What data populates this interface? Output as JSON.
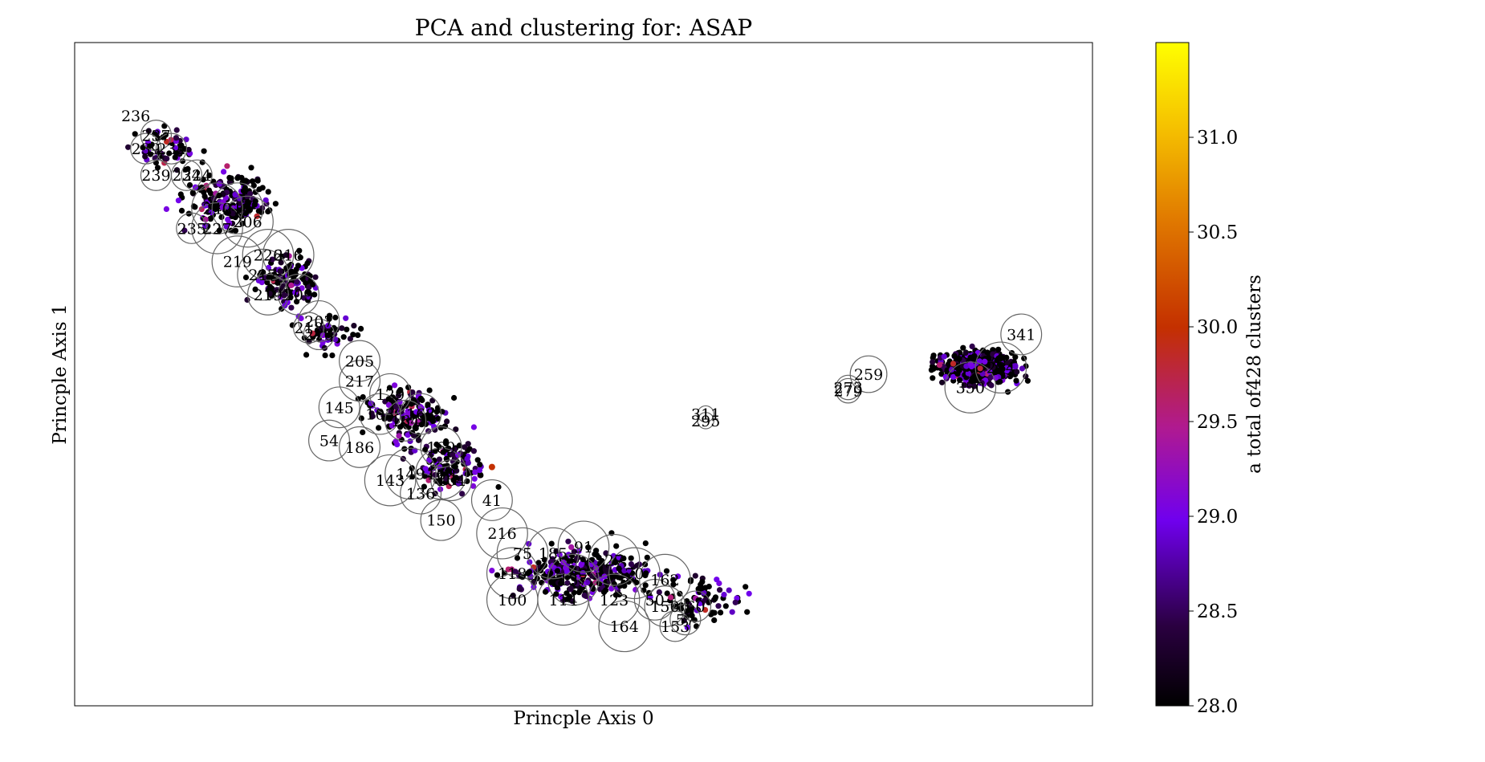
{
  "chart_data": {
    "type": "scatter",
    "title": "PCA and clustering for: ASAP",
    "xlabel": "Princple Axis 0",
    "ylabel": "Princple Axis 1",
    "xlim": [
      0,
      100
    ],
    "ylim": [
      0,
      100
    ],
    "grid": false,
    "colorbar": {
      "label": "a total of428 clusters",
      "colormap": "gnuplot",
      "range": [
        28.0,
        31.5
      ],
      "ticks": [
        28.0,
        28.5,
        29.0,
        29.5,
        30.0,
        30.5,
        31.0
      ],
      "tick_labels": [
        "28.0",
        "28.5",
        "29.0",
        "29.5",
        "30.0",
        "30.5",
        "31.0"
      ]
    },
    "point_groups": [
      {
        "cx": 9,
        "cy": 84,
        "sx": 2.5,
        "sy": 2.5,
        "n": 60
      },
      {
        "cx": 15,
        "cy": 76,
        "sx": 3.5,
        "sy": 3.5,
        "n": 200
      },
      {
        "cx": 21,
        "cy": 64,
        "sx": 3,
        "sy": 3,
        "n": 120
      },
      {
        "cx": 25,
        "cy": 56,
        "sx": 2.5,
        "sy": 2.5,
        "n": 50
      },
      {
        "cx": 33,
        "cy": 44,
        "sx": 3,
        "sy": 3.5,
        "n": 160
      },
      {
        "cx": 37,
        "cy": 36,
        "sx": 3,
        "sy": 3,
        "n": 140
      },
      {
        "cx": 50,
        "cy": 20,
        "sx": 5.5,
        "sy": 3,
        "n": 320
      },
      {
        "cx": 62,
        "cy": 16,
        "sx": 3.5,
        "sy": 3,
        "n": 80
      },
      {
        "cx": 89,
        "cy": 51,
        "sx": 3,
        "sy": 2,
        "n": 600
      }
    ],
    "highlight_point": {
      "x": 41,
      "y": 36,
      "value": 30.0
    },
    "clusters": [
      {
        "label": "236",
        "x": 6,
        "y": 89,
        "r": 0
      },
      {
        "label": "237",
        "x": 8,
        "y": 86,
        "r": 1.5
      },
      {
        "label": "239",
        "x": 7,
        "y": 84,
        "r": 1.5
      },
      {
        "label": "232",
        "x": 9.5,
        "y": 84,
        "r": 1.5
      },
      {
        "label": "239",
        "x": 8,
        "y": 80,
        "r": 1.5
      },
      {
        "label": "234",
        "x": 11,
        "y": 80,
        "r": 1.5
      },
      {
        "label": "224",
        "x": 12,
        "y": 80,
        "r": 1.5
      },
      {
        "label": "240",
        "x": 14,
        "y": 75,
        "r": 2.5
      },
      {
        "label": "214",
        "x": 16,
        "y": 75,
        "r": 2.5
      },
      {
        "label": "206",
        "x": 17,
        "y": 73,
        "r": 2.5
      },
      {
        "label": "235",
        "x": 11.5,
        "y": 72,
        "r": 1.5
      },
      {
        "label": "227",
        "x": 14,
        "y": 72,
        "r": 2.5
      },
      {
        "label": "226",
        "x": 19,
        "y": 68,
        "r": 2.5
      },
      {
        "label": "216",
        "x": 21,
        "y": 68,
        "r": 2.5
      },
      {
        "label": "219",
        "x": 16,
        "y": 67,
        "r": 2.5
      },
      {
        "label": "217",
        "x": 18.5,
        "y": 65,
        "r": 2.5
      },
      {
        "label": "219",
        "x": 19,
        "y": 62,
        "r": 2
      },
      {
        "label": "209",
        "x": 22,
        "y": 62,
        "r": 2
      },
      {
        "label": "218",
        "x": 23,
        "y": 57,
        "r": 1.5
      },
      {
        "label": "207",
        "x": 24,
        "y": 58,
        "r": 2
      },
      {
        "label": "210",
        "x": 24,
        "y": 56,
        "r": 1.5
      },
      {
        "label": "205",
        "x": 28,
        "y": 52,
        "r": 2
      },
      {
        "label": "217",
        "x": 28,
        "y": 49,
        "r": 2
      },
      {
        "label": "129",
        "x": 31,
        "y": 47,
        "r": 2
      },
      {
        "label": "145",
        "x": 26,
        "y": 45,
        "r": 2
      },
      {
        "label": "103",
        "x": 30,
        "y": 44,
        "r": 2
      },
      {
        "label": "164",
        "x": 32.5,
        "y": 43,
        "r": 2
      },
      {
        "label": "168",
        "x": 34,
        "y": 44,
        "r": 2
      },
      {
        "label": "54",
        "x": 25,
        "y": 40,
        "r": 2
      },
      {
        "label": "186",
        "x": 28,
        "y": 39,
        "r": 2
      },
      {
        "label": "169",
        "x": 36,
        "y": 39,
        "r": 2
      },
      {
        "label": "149",
        "x": 33,
        "y": 35,
        "r": 2.5
      },
      {
        "label": "160",
        "x": 36,
        "y": 35,
        "r": 2.5
      },
      {
        "label": "143",
        "x": 31,
        "y": 34,
        "r": 2.5
      },
      {
        "label": "104",
        "x": 37,
        "y": 34,
        "r": 2
      },
      {
        "label": "136",
        "x": 34,
        "y": 32,
        "r": 2
      },
      {
        "label": "41",
        "x": 41,
        "y": 31,
        "r": 2
      },
      {
        "label": "150",
        "x": 36,
        "y": 28,
        "r": 2
      },
      {
        "label": "216",
        "x": 42,
        "y": 26,
        "r": 2.5
      },
      {
        "label": "91",
        "x": 50,
        "y": 24,
        "r": 2.5
      },
      {
        "label": "75",
        "x": 44,
        "y": 23,
        "r": 2.5
      },
      {
        "label": "185",
        "x": 47,
        "y": 23,
        "r": 2.5
      },
      {
        "label": "27",
        "x": 53,
        "y": 22,
        "r": 2.5
      },
      {
        "label": "118",
        "x": 43,
        "y": 20,
        "r": 2.5
      },
      {
        "label": "137",
        "x": 49,
        "y": 19,
        "r": 2.5
      },
      {
        "label": "70",
        "x": 55,
        "y": 20,
        "r": 2.5
      },
      {
        "label": "162",
        "x": 58,
        "y": 19,
        "r": 2.5
      },
      {
        "label": "100",
        "x": 43,
        "y": 16,
        "r": 2.5
      },
      {
        "label": "114",
        "x": 48,
        "y": 16,
        "r": 2.5
      },
      {
        "label": "123",
        "x": 53,
        "y": 16,
        "r": 2.5
      },
      {
        "label": "50",
        "x": 57,
        "y": 16,
        "r": 2
      },
      {
        "label": "150",
        "x": 58,
        "y": 15,
        "r": 2
      },
      {
        "label": "60",
        "x": 61,
        "y": 15,
        "r": 1.5
      },
      {
        "label": "164",
        "x": 54,
        "y": 12,
        "r": 2.5
      },
      {
        "label": "57",
        "x": 60,
        "y": 13,
        "r": 1.5
      },
      {
        "label": "153",
        "x": 59,
        "y": 12,
        "r": 1.5
      },
      {
        "label": "311",
        "x": 62,
        "y": 44,
        "r": 0.8
      },
      {
        "label": "295",
        "x": 62,
        "y": 43,
        "r": 0.8
      },
      {
        "label": "273",
        "x": 76,
        "y": 48,
        "r": 1.2
      },
      {
        "label": "279",
        "x": 76,
        "y": 47.5,
        "r": 1.2
      },
      {
        "label": "259",
        "x": 78,
        "y": 50,
        "r": 1.8
      },
      {
        "label": "341",
        "x": 93,
        "y": 56,
        "r": 2
      },
      {
        "label": "350",
        "x": 88,
        "y": 48,
        "r": 2.5
      },
      {
        "label": "284",
        "x": 91,
        "y": 51,
        "r": 2.5
      }
    ]
  }
}
